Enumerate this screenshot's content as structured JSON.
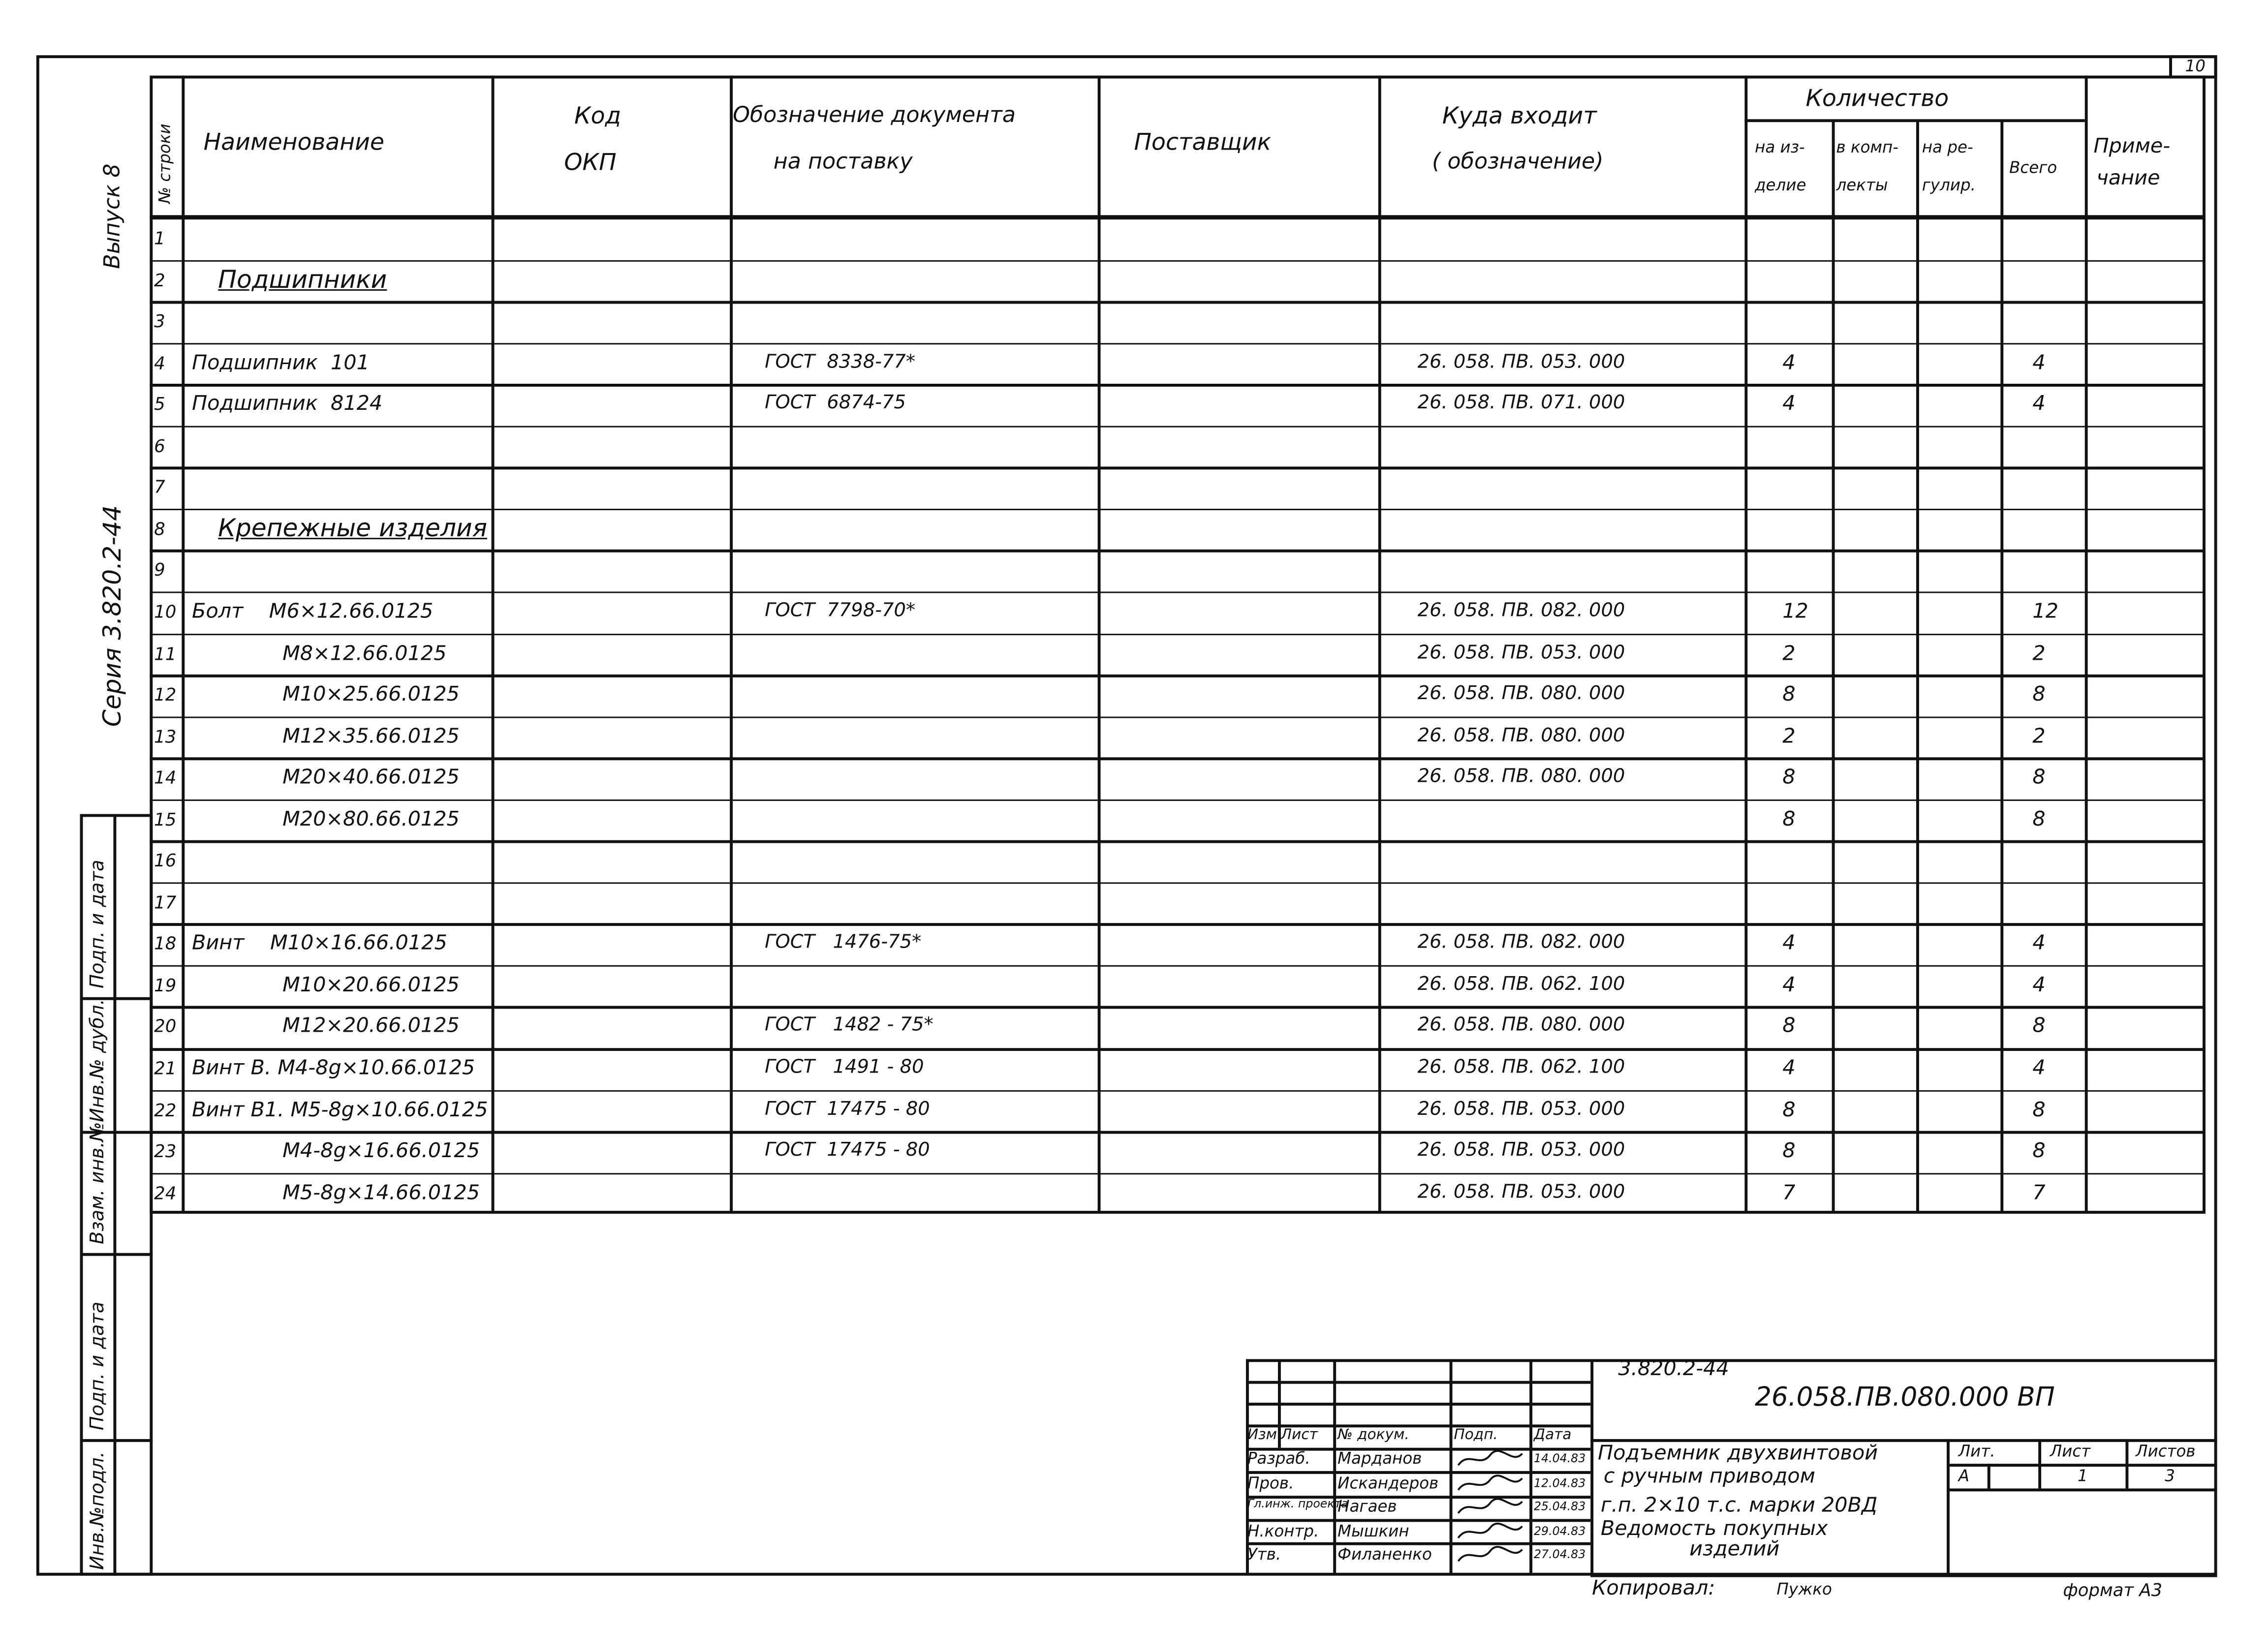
{
  "sheet_number": "10",
  "side": {
    "issue": "Выпуск 8",
    "series": "Серия   3.820.2-44",
    "stamps": [
      "Инв.№подл.",
      "Подп. и дата",
      "Взам. инв.№",
      "Инв.№ дубл.",
      "Подп. и дата"
    ]
  },
  "header": {
    "row_no": "№ строки",
    "name": "Наименование",
    "code": "Код ОКП",
    "code_l1": "Код",
    "code_l2": "ОКП",
    "doc_l1": "Обозначение документа",
    "doc_l2": "на   поставку",
    "supplier": "Поставщик",
    "where_l1": "Куда   входит",
    "where_l2": "( обозначение)",
    "qty": "Количество",
    "qty_per_l1": "на из-",
    "qty_per_l2": "делие",
    "qty_kit_l1": "в комп-",
    "qty_kit_l2": "лекты",
    "qty_rep_l1": "на ре-",
    "qty_rep_l2": "гулир.",
    "qty_total": "Всего",
    "note_l1": "Приме-",
    "note_l2": "чание"
  },
  "rows": [
    {
      "n": "1",
      "name": "",
      "doc": "",
      "where": "",
      "per": "",
      "total": ""
    },
    {
      "n": "2",
      "name": "Подшипники",
      "section": true,
      "doc": "",
      "where": "",
      "per": "",
      "total": ""
    },
    {
      "n": "3",
      "name": "",
      "doc": "",
      "where": "",
      "per": "",
      "total": ""
    },
    {
      "n": "4",
      "name": "Подшипник  101",
      "doc": "ГОСТ  8338-77*",
      "where": "26. 058. ПВ. 053. 000",
      "per": "4",
      "total": "4"
    },
    {
      "n": "5",
      "name": "Подшипник  8124",
      "doc": "ГОСТ  6874-75",
      "where": "26. 058. ПВ. 071. 000",
      "per": "4",
      "total": "4"
    },
    {
      "n": "6",
      "name": "",
      "doc": "",
      "where": "",
      "per": "",
      "total": ""
    },
    {
      "n": "7",
      "name": "",
      "doc": "",
      "where": "",
      "per": "",
      "total": ""
    },
    {
      "n": "8",
      "name": "Крепежные изделия",
      "section": true,
      "doc": "",
      "where": "",
      "per": "",
      "total": ""
    },
    {
      "n": "9",
      "name": "",
      "doc": "",
      "where": "",
      "per": "",
      "total": ""
    },
    {
      "n": "10",
      "name": "Болт    М6×12.66.0125",
      "doc": "ГОСТ  7798-70*",
      "where": "26. 058. ПВ. 082. 000",
      "per": "12",
      "total": "12"
    },
    {
      "n": "11",
      "name": "              М8×12.66.0125",
      "doc": "",
      "where": "26. 058. ПВ. 053. 000",
      "per": "2",
      "total": "2"
    },
    {
      "n": "12",
      "name": "              М10×25.66.0125",
      "doc": "",
      "where": "26. 058. ПВ. 080. 000",
      "per": "8",
      "total": "8"
    },
    {
      "n": "13",
      "name": "              М12×35.66.0125",
      "doc": "",
      "where": "26. 058. ПВ. 080. 000",
      "per": "2",
      "total": "2"
    },
    {
      "n": "14",
      "name": "              М20×40.66.0125",
      "doc": "",
      "where": "26. 058. ПВ. 080. 000",
      "per": "8",
      "total": "8"
    },
    {
      "n": "15",
      "name": "              М20×80.66.0125",
      "doc": "",
      "where": "",
      "per": "8",
      "total": "8"
    },
    {
      "n": "16",
      "name": "",
      "doc": "",
      "where": "",
      "per": "",
      "total": ""
    },
    {
      "n": "17",
      "name": "",
      "doc": "",
      "where": "",
      "per": "",
      "total": ""
    },
    {
      "n": "18",
      "name": "Винт    М10×16.66.0125",
      "doc": "ГОСТ   1476-75*",
      "where": "26. 058. ПВ. 082. 000",
      "per": "4",
      "total": "4"
    },
    {
      "n": "19",
      "name": "              М10×20.66.0125",
      "doc": "",
      "where": "26. 058. ПВ. 062. 100",
      "per": "4",
      "total": "4"
    },
    {
      "n": "20",
      "name": "              М12×20.66.0125",
      "doc": "ГОСТ   1482 - 75*",
      "where": "26. 058. ПВ. 080. 000",
      "per": "8",
      "total": "8"
    },
    {
      "n": "21",
      "name": "Винт В. М4-8g×10.66.0125",
      "doc": "ГОСТ   1491 - 80",
      "where": "26. 058. ПВ. 062. 100",
      "per": "4",
      "total": "4"
    },
    {
      "n": "22",
      "name": "Винт В1. М5-8g×10.66.0125",
      "doc": "ГОСТ  17475 - 80",
      "where": "26. 058. ПВ. 053. 000",
      "per": "8",
      "total": "8"
    },
    {
      "n": "23",
      "name": "              М4-8g×16.66.0125",
      "doc": "ГОСТ  17475 - 80",
      "where": "26. 058. ПВ. 053. 000",
      "per": "8",
      "total": "8"
    },
    {
      "n": "24",
      "name": "              М5-8g×14.66.0125",
      "doc": "",
      "where": "26. 058. ПВ. 053. 000",
      "per": "7",
      "total": "7"
    }
  ],
  "title_block": {
    "series": "3.820.2-44",
    "designation": "26.058.ПВ.080.000 ВП",
    "col_headers": [
      "Изм",
      "Лист",
      "№ докум.",
      "Подп.",
      "Дата"
    ],
    "signers": [
      {
        "role": "Разраб.",
        "name": "Марданов",
        "date": "14.04.83"
      },
      {
        "role": "Пров.",
        "name": "Искандеров",
        "date": "12.04.83"
      },
      {
        "role": "Гл.инж. проекта",
        "name": "Нагаев",
        "date": "25.04.83"
      },
      {
        "role": "Н.контр.",
        "name": "Мышкин",
        "date": "29.04.83"
      },
      {
        "role": "Утв.",
        "name": "Филаненко",
        "date": "27.04.83"
      }
    ],
    "title_lines": [
      "Подъемник  двухвинтовой",
      "с ручным   приводом",
      "г.п. 2×10 т.с. марки 20ВД",
      "Ведомость  покупных",
      "изделий"
    ],
    "lit_label": "Лит.",
    "sheet_label": "Лист",
    "sheets_label": "Листов",
    "lit": "А",
    "sheet": "1",
    "sheets": "3",
    "copied_label": "Копировал:",
    "copied_by": "Пужко",
    "format": "формат А3"
  }
}
